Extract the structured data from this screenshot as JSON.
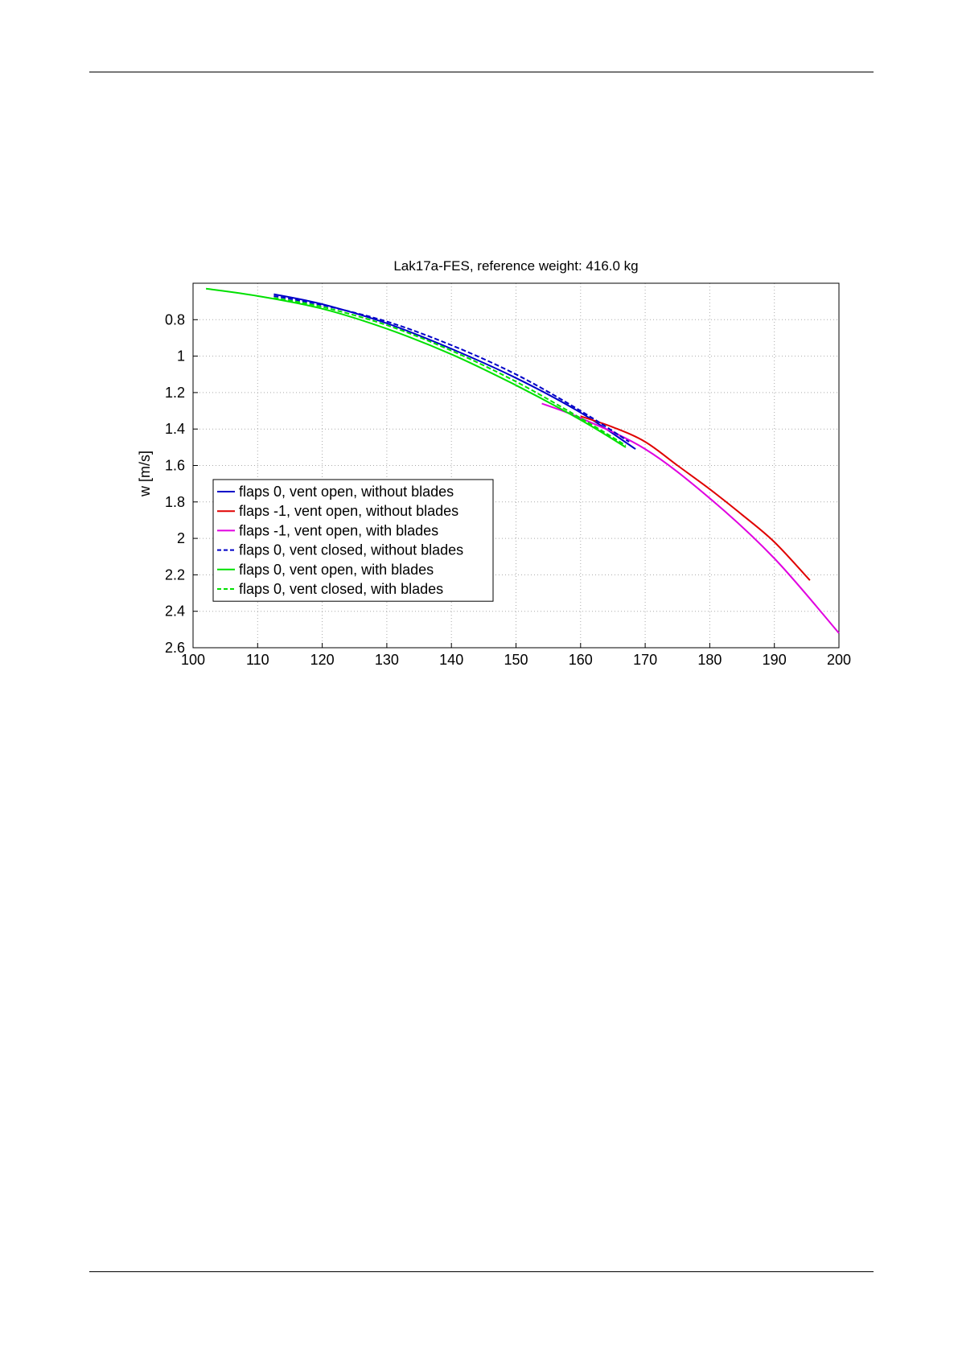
{
  "chart_data": {
    "type": "line",
    "title": "Lak17a-FES, reference weight: 416.0 kg",
    "xlabel": "",
    "ylabel": "w [m/s]",
    "xlim": [
      100,
      200
    ],
    "ylim": [
      0.6,
      2.6
    ],
    "y_reversed": true,
    "grid": true,
    "legend_position": "bottom-left",
    "x_ticks": [
      "100",
      "110",
      "120",
      "130",
      "140",
      "150",
      "160",
      "170",
      "180",
      "190",
      "200"
    ],
    "y_ticks": [
      "0.8",
      "1",
      "1.2",
      "1.4",
      "1.6",
      "1.8",
      "2",
      "2.2",
      "2.4",
      "2.6"
    ],
    "series": [
      {
        "name": "flaps 0, vent open, without blades",
        "color": "#0000c8",
        "dash": "solid",
        "x": [
          112.5,
          120,
          130,
          140,
          150,
          160,
          168.5
        ],
        "y": [
          0.66,
          0.715,
          0.82,
          0.96,
          1.12,
          1.31,
          1.51
        ]
      },
      {
        "name": "flaps -1, vent open, without blades",
        "color": "#e00000",
        "dash": "solid",
        "x": [
          160,
          165,
          170,
          175,
          180,
          185,
          190,
          195.5
        ],
        "y": [
          1.33,
          1.39,
          1.47,
          1.6,
          1.73,
          1.87,
          2.02,
          2.23
        ]
      },
      {
        "name": "flaps -1, vent open, with blades",
        "color": "#e000e0",
        "dash": "solid",
        "x": [
          154,
          160,
          170,
          180,
          190,
          200
        ],
        "y": [
          1.26,
          1.34,
          1.51,
          1.78,
          2.11,
          2.52
        ]
      },
      {
        "name": "flaps 0, vent closed, without blades",
        "color": "#0000c8",
        "dash": "dashed",
        "x": [
          112.5,
          120,
          130,
          140,
          150,
          160,
          167.5
        ],
        "y": [
          0.67,
          0.72,
          0.81,
          0.94,
          1.1,
          1.3,
          1.47
        ]
      },
      {
        "name": "flaps 0, vent open, with blades",
        "color": "#00e000",
        "dash": "solid",
        "x": [
          102,
          110,
          120,
          130,
          140,
          150,
          160,
          167
        ],
        "y": [
          0.63,
          0.67,
          0.74,
          0.85,
          0.99,
          1.16,
          1.35,
          1.5
        ]
      },
      {
        "name": "flaps 0, vent closed, with blades",
        "color": "#00e000",
        "dash": "dashed",
        "x": [
          112.5,
          120,
          130,
          140,
          150,
          160,
          167
        ],
        "y": [
          0.68,
          0.73,
          0.83,
          0.97,
          1.14,
          1.34,
          1.49
        ]
      }
    ]
  }
}
